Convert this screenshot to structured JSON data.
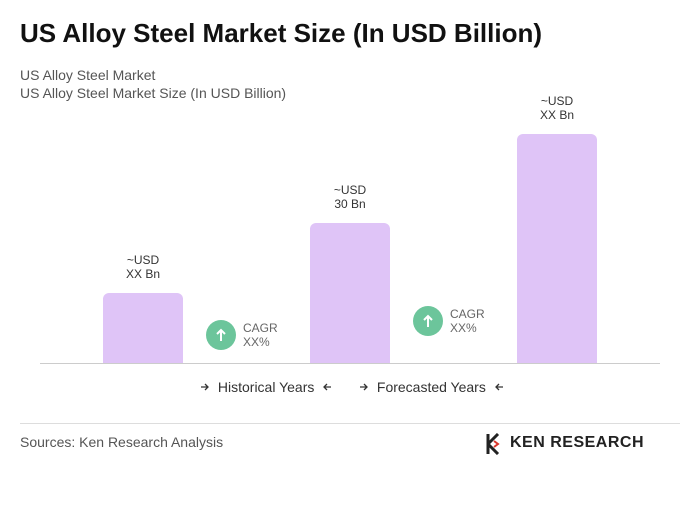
{
  "chart_data": {
    "type": "bar",
    "title": "US Alloy Steel Market Size (In USD Billion)",
    "subtitle": [
      "US Alloy Steel Market",
      "US Alloy Steel Market Size (In USD Billion)"
    ],
    "values": [
      15,
      30,
      49
    ],
    "value_labels": [
      "~USD\nXX Bn",
      "~USD\n30 Bn",
      "~USD\nXX Bn"
    ],
    "color": "#dfc4f7",
    "annotations": [
      "CAGR\nXX%",
      "CAGR\nXX%"
    ],
    "legend": [
      "Historical Years",
      "Forecasted Years"
    ]
  },
  "source": "Sources: Ken Research Analysis",
  "logo": "KEN RESEARCH"
}
